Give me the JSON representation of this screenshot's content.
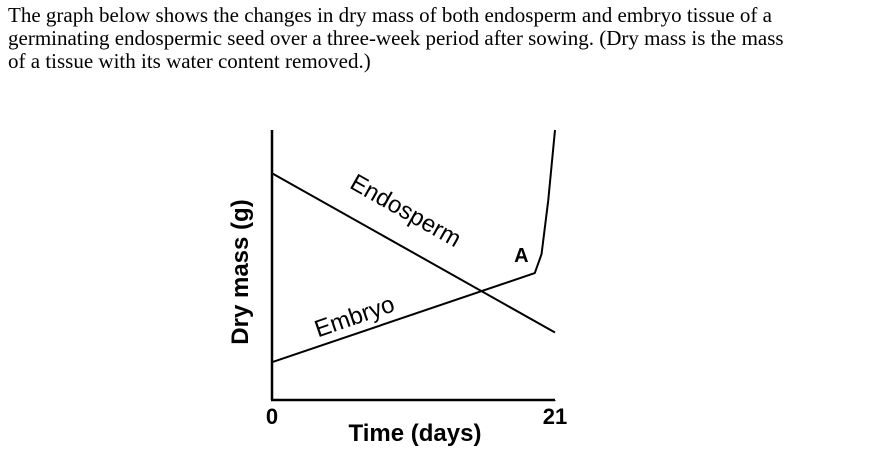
{
  "paragraph": [
    "The graph below shows the changes in dry mass of both endosperm and embryo tissue of a",
    "germinating endospermic seed over a three-week period after sowing. (Dry mass is the mass",
    "of a tissue with its water content removed.)"
  ],
  "chart_data": {
    "type": "line",
    "x_label": "Time (days)",
    "y_label": "Dry mass (g)",
    "xlim": [
      0,
      21
    ],
    "xticks": [
      0,
      21
    ],
    "ylim": [
      0,
      10
    ],
    "series": [
      {
        "name": "Endosperm",
        "color": "#000000",
        "x": [
          0,
          21
        ],
        "values": [
          8.4,
          2.5
        ]
      },
      {
        "name": "Embryo",
        "color": "#000000",
        "x": [
          0,
          19.5,
          20,
          20.5,
          21
        ],
        "values": [
          1.4,
          4.7,
          5.4,
          7.4,
          10
        ]
      }
    ],
    "annotations": [
      {
        "text": "A",
        "x": 18.5,
        "y": 5.3
      }
    ]
  }
}
